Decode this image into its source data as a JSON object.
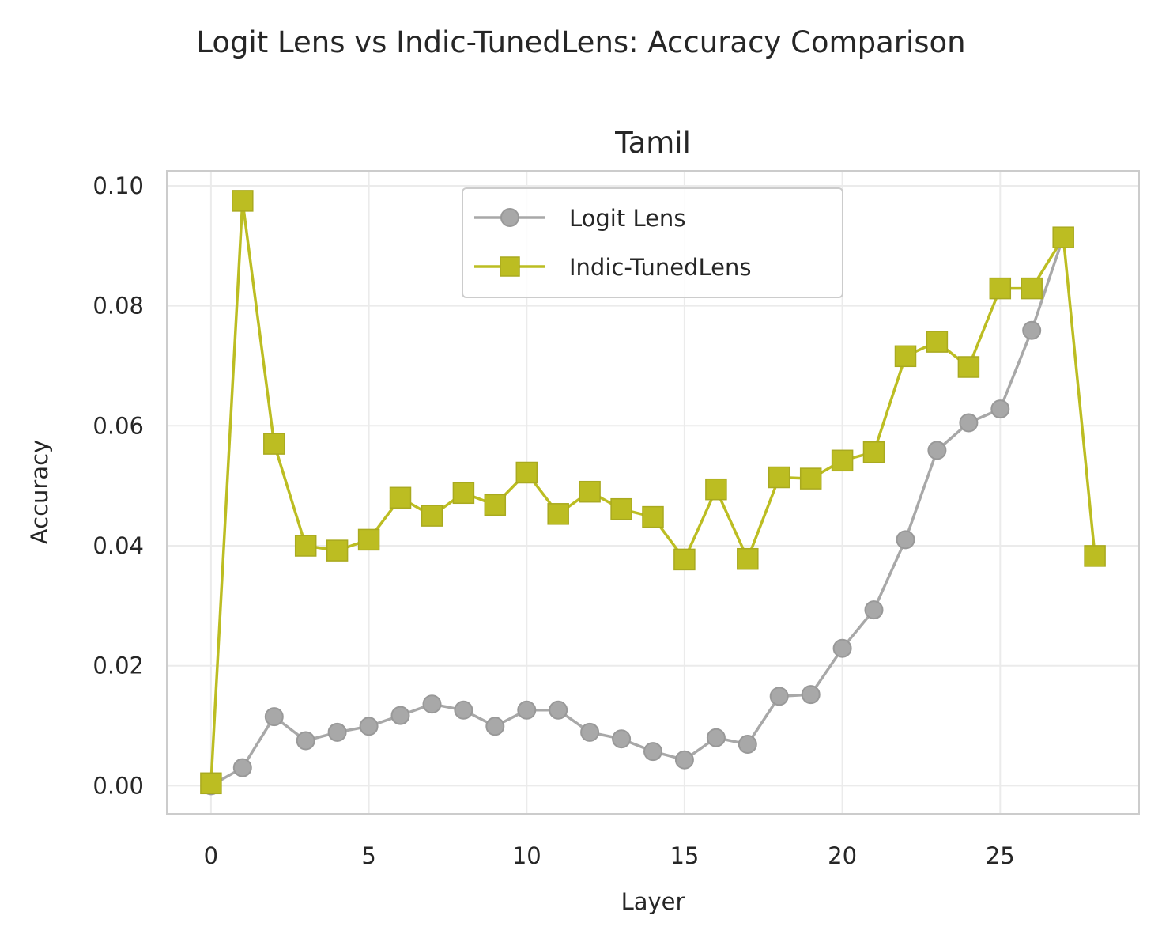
{
  "figure_title": "Logit Lens vs Indic-TunedLens: Accuracy Comparison",
  "chart_data": {
    "type": "line",
    "title": "Tamil",
    "xlabel": "Layer",
    "ylabel": "Accuracy",
    "xlim": [
      -1.4,
      29.4
    ],
    "ylim": [
      -0.0047,
      0.1025
    ],
    "xticks": [
      0,
      5,
      10,
      15,
      20,
      25
    ],
    "yticks": [
      0.0,
      0.02,
      0.04,
      0.06,
      0.08,
      0.1
    ],
    "ytick_labels": [
      "0.00",
      "0.02",
      "0.04",
      "0.06",
      "0.08",
      "0.10"
    ],
    "grid": true,
    "legend_position": "upper center",
    "series": [
      {
        "name": "Logit Lens",
        "color": "#a8a8a8",
        "marker": "circle",
        "x": [
          0,
          1,
          2,
          3,
          4,
          5,
          6,
          7,
          8,
          9,
          10,
          11,
          12,
          13,
          14,
          15,
          16,
          17,
          18,
          19,
          20,
          21,
          22,
          23,
          24,
          25,
          26,
          27
        ],
        "y": [
          0.0,
          0.003,
          0.0115,
          0.0075,
          0.0089,
          0.0099,
          0.0117,
          0.0136,
          0.0126,
          0.0099,
          0.0126,
          0.0126,
          0.0089,
          0.0078,
          0.0057,
          0.0043,
          0.008,
          0.0069,
          0.0149,
          0.0152,
          0.0229,
          0.0293,
          0.041,
          0.0559,
          0.0605,
          0.0628,
          0.0759,
          0.0915
        ]
      },
      {
        "name": "Indic-TunedLens",
        "color": "#bcbd22",
        "marker": "square",
        "x": [
          0,
          1,
          2,
          3,
          4,
          5,
          6,
          7,
          8,
          9,
          10,
          11,
          12,
          13,
          14,
          15,
          16,
          17,
          18,
          19,
          20,
          21,
          22,
          23,
          24,
          25,
          26,
          27,
          28
        ],
        "y": [
          0.0004,
          0.0975,
          0.057,
          0.04,
          0.0392,
          0.041,
          0.048,
          0.045,
          0.0488,
          0.0468,
          0.0522,
          0.0453,
          0.049,
          0.0461,
          0.0448,
          0.0377,
          0.0494,
          0.0378,
          0.0514,
          0.0512,
          0.0542,
          0.0556,
          0.0716,
          0.074,
          0.0698,
          0.0829,
          0.0829,
          0.0914,
          0.0383
        ]
      }
    ]
  }
}
